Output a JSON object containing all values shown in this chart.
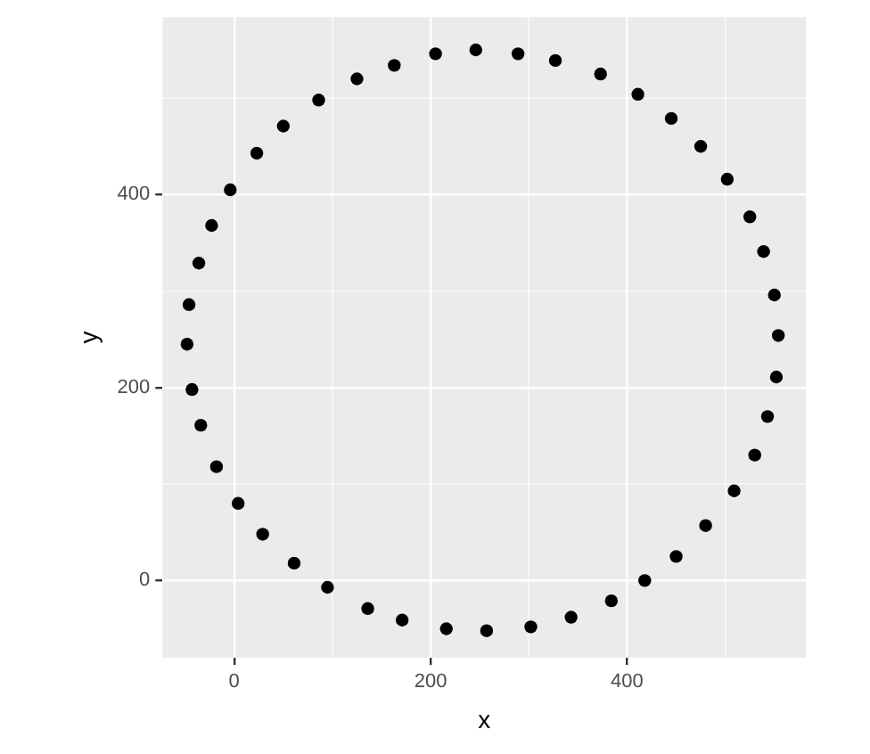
{
  "chart_data": {
    "type": "scatter",
    "xlabel": "x",
    "ylabel": "y",
    "x": [
      246,
      289,
      327,
      373,
      411,
      445,
      475,
      502,
      525,
      539,
      550,
      554,
      552,
      543,
      530,
      509,
      480,
      450,
      418,
      384,
      343,
      302,
      257,
      216,
      171,
      136,
      95,
      61,
      29,
      4,
      -18,
      -34,
      -43,
      -48,
      -46,
      -36,
      -23,
      -4,
      23,
      50,
      86,
      125,
      163,
      205
    ],
    "series": [
      {
        "color": "#000000",
        "values": [
          550,
          546,
          539,
          525,
          504,
          479,
          450,
          416,
          377,
          341,
          296,
          254,
          211,
          170,
          130,
          93,
          57,
          25,
          0,
          -21,
          -38,
          -48,
          -52,
          -50,
          -41,
          -29,
          -7,
          18,
          48,
          80,
          118,
          161,
          198,
          245,
          286,
          329,
          368,
          405,
          443,
          471,
          498,
          520,
          534,
          546
        ]
      }
    ],
    "xlim": [
      -73,
      582
    ],
    "ylim": [
      -80,
      584
    ],
    "xticks": [
      0,
      {
        "value": 100,
        "label": null
      },
      200,
      {
        "value": 300,
        "label": null
      },
      400,
      {
        "value": 500,
        "label": null
      }
    ],
    "yticks": [
      0,
      {
        "value": 100,
        "label": null
      },
      200,
      {
        "value": 300,
        "label": null
      },
      400,
      {
        "value": 500,
        "label": null
      }
    ],
    "grid": true,
    "marker": "circle",
    "legend": false
  }
}
